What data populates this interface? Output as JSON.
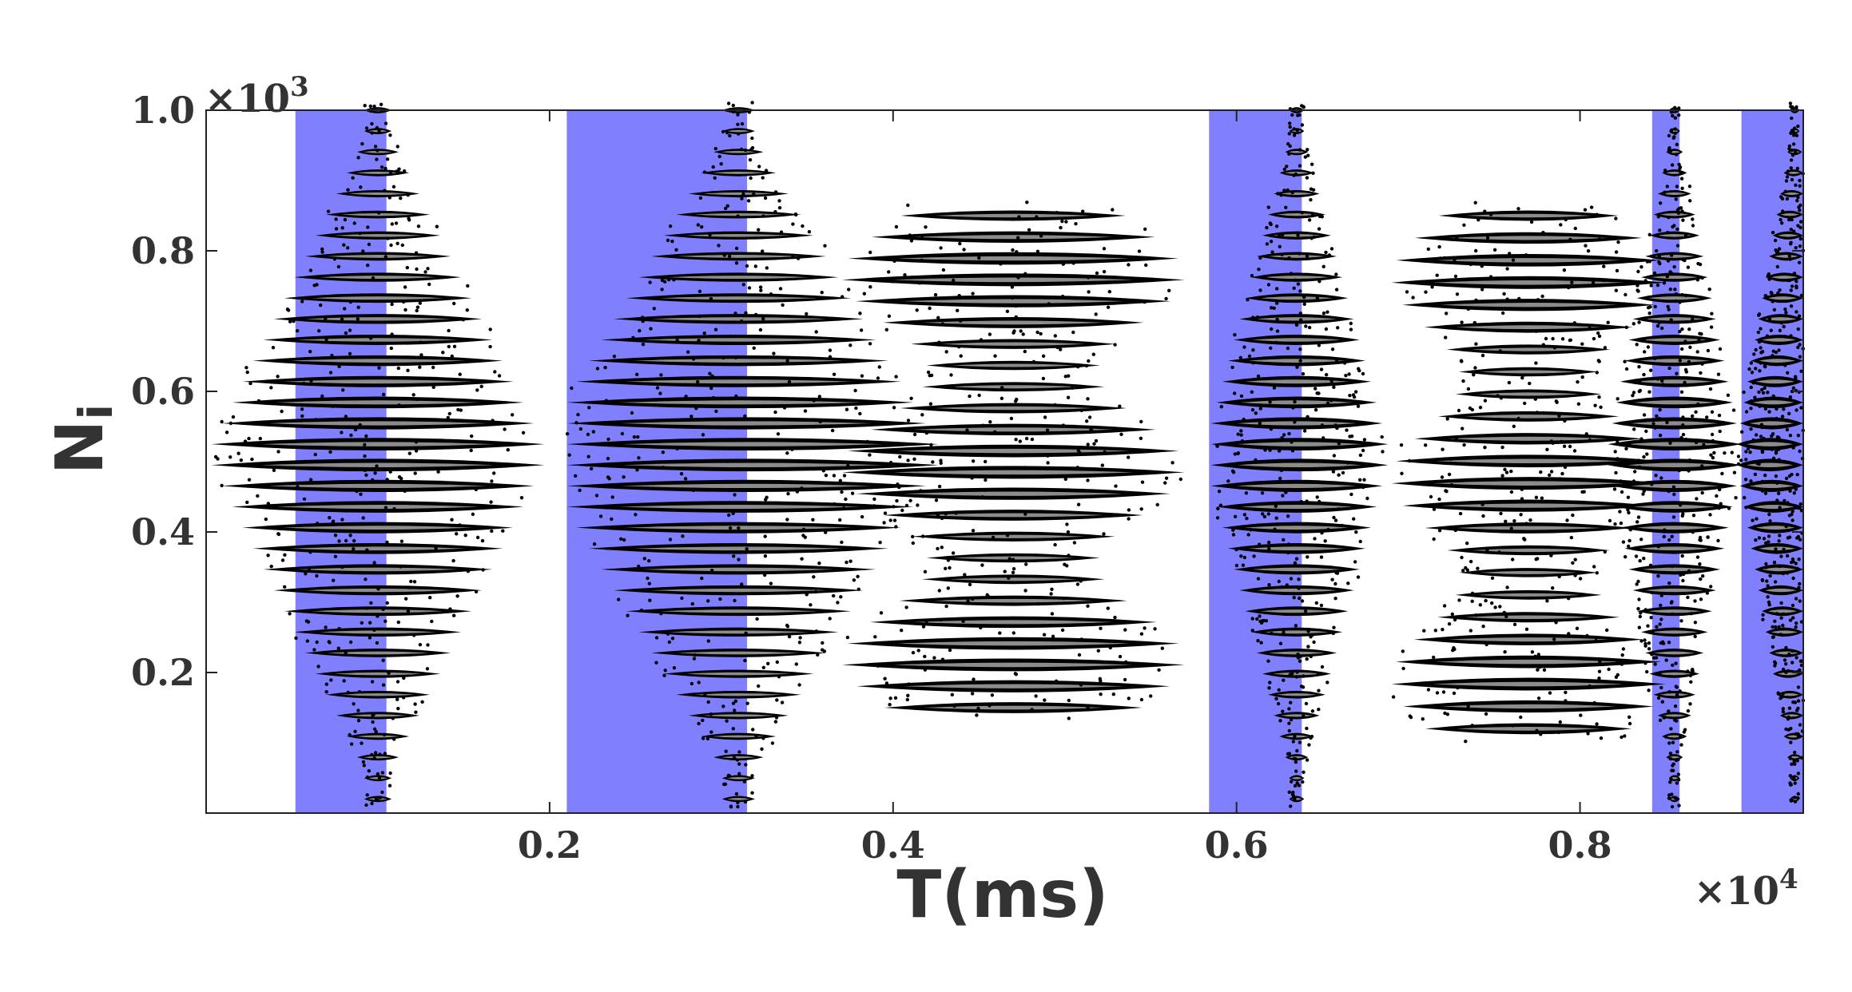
{
  "chart_data": {
    "type": "scatter",
    "title": "",
    "xlabel": "T(ms)",
    "ylabel": "N",
    "ylabel_subscript": "i",
    "x_multiplier": "×10",
    "x_multiplier_exp": "4",
    "y_multiplier": "×10",
    "y_multiplier_exp": "3",
    "xlim": [
      0,
      0.93
    ],
    "ylim": [
      0,
      1.0
    ],
    "xticks": [
      0.2,
      0.4,
      0.6,
      0.8
    ],
    "xtick_labels": [
      "0.2",
      "0.4",
      "0.6",
      "0.8"
    ],
    "yticks": [
      0.2,
      0.4,
      0.6,
      0.8,
      1.0
    ],
    "ytick_labels": [
      "0.2",
      "0.4",
      "0.6",
      "0.8",
      "1.0"
    ],
    "grid": false,
    "point_color": "#000000",
    "band_color": "#8080ff",
    "shaded_regions": [
      {
        "x_start": 0.052,
        "x_end": 0.105
      },
      {
        "x_start": 0.21,
        "x_end": 0.315
      },
      {
        "x_start": 0.584,
        "x_end": 0.638
      },
      {
        "x_start": 0.842,
        "x_end": 0.858
      },
      {
        "x_start": 0.894,
        "x_end": 0.93
      }
    ],
    "spindle_groups": [
      {
        "center": 0.1,
        "half_width_max": 0.1,
        "x_min": 0.0,
        "x_max": 0.205,
        "y_min": 0.02,
        "y_max": 1.0,
        "rows": 34,
        "shape": "diamond"
      },
      {
        "center": 0.31,
        "half_width_max": 0.12,
        "x_min": 0.21,
        "x_max": 0.43,
        "y_min": 0.02,
        "y_max": 1.0,
        "rows": 34,
        "shape": "diamond"
      },
      {
        "center": 0.47,
        "half_width_max": 0.1,
        "x_min": 0.34,
        "x_max": 0.58,
        "y_min": 0.15,
        "y_max": 0.85,
        "rows": 24,
        "shape": "wave"
      },
      {
        "center": 0.635,
        "half_width_max": 0.055,
        "x_min": 0.585,
        "x_max": 0.69,
        "y_min": 0.02,
        "y_max": 1.0,
        "rows": 34,
        "shape": "diamond"
      },
      {
        "center": 0.77,
        "half_width_max": 0.08,
        "x_min": 0.69,
        "x_max": 0.88,
        "y_min": 0.12,
        "y_max": 0.85,
        "rows": 24,
        "shape": "wave"
      },
      {
        "center": 0.855,
        "half_width_max": 0.04,
        "x_min": 0.815,
        "x_max": 0.895,
        "y_min": 0.02,
        "y_max": 1.0,
        "rows": 34,
        "shape": "diamond"
      },
      {
        "center": 0.925,
        "half_width_max": 0.035,
        "x_min": 0.89,
        "x_max": 0.93,
        "y_min": 0.02,
        "y_max": 1.0,
        "rows": 34,
        "shape": "diamond"
      }
    ]
  }
}
